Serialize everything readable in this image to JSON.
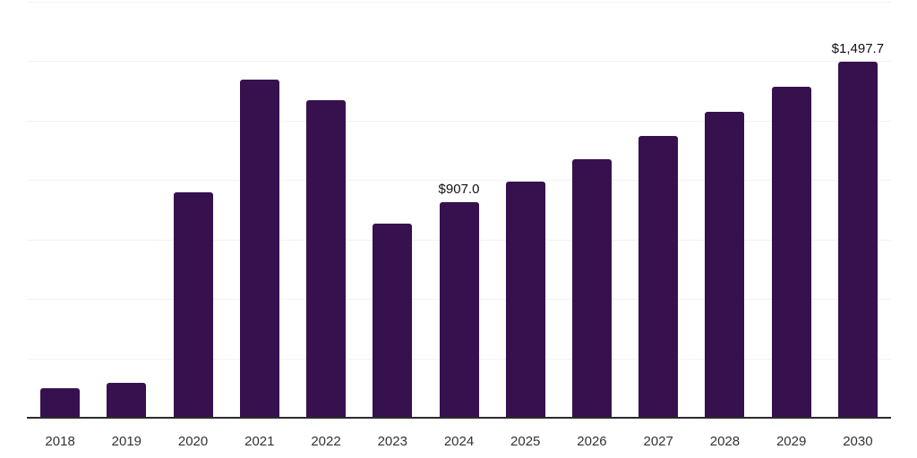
{
  "chart_data": {
    "type": "bar",
    "categories": [
      "2018",
      "2019",
      "2020",
      "2021",
      "2022",
      "2023",
      "2024",
      "2025",
      "2026",
      "2027",
      "2028",
      "2029",
      "2030"
    ],
    "values": [
      123,
      145,
      950,
      1422,
      1336,
      816,
      907.0,
      993,
      1088,
      1185,
      1287,
      1392,
      1497.7
    ],
    "annotations": [
      {
        "index": 6,
        "text": "$907.0"
      },
      {
        "index": 12,
        "text": "$1,497.7"
      }
    ],
    "title": "",
    "xlabel": "",
    "ylabel": "",
    "ylim": [
      0,
      1750
    ],
    "grid_step": 250,
    "grid_on": true,
    "legend_position": "none",
    "colors": {
      "bar": "#36114E",
      "gridline": "#f2f2f2",
      "axis_line": "#2b2b2b",
      "tick_label": "#333333",
      "data_label": "#111111",
      "background": "#ffffff"
    }
  }
}
